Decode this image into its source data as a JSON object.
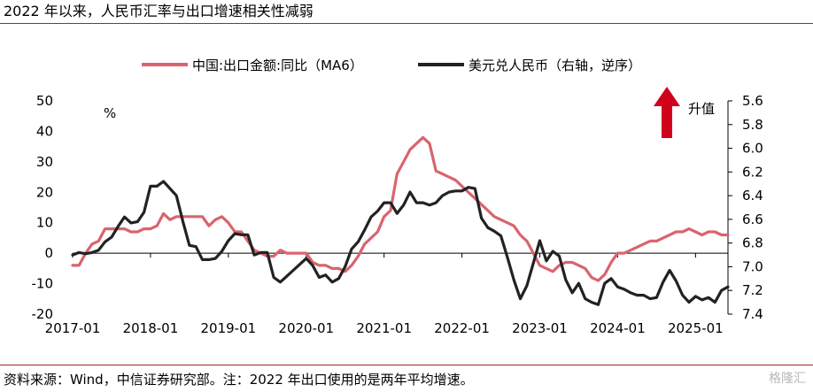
{
  "header": {
    "title": "2022 年以来，人民币汇率与出口增速相关性减弱"
  },
  "footer": {
    "source_note": "资料来源：Wind，中信证券研究部。注：2022 年出口使用的是两年平均增速。",
    "watermark": "格隆汇"
  },
  "colors": {
    "series_export": "#d9646e",
    "series_fx": "#222222",
    "arrow": "#d0021b",
    "rule": "#9a2a2a"
  },
  "chart_data": {
    "type": "line",
    "legend_position": "top",
    "grid": false,
    "x_axis": {
      "tick_labels": [
        "2017-01",
        "2018-01",
        "2019-01",
        "2020-01",
        "2021-01",
        "2022-01",
        "2023-01",
        "2024-01",
        "2025-01"
      ],
      "range": [
        "2017-01",
        "2025-06"
      ]
    },
    "y_left": {
      "unit_label": "%",
      "min": -20,
      "max": 50,
      "ticks": [
        -20,
        -10,
        0,
        10,
        20,
        30,
        40,
        50
      ]
    },
    "y_right": {
      "min": 5.6,
      "max": 7.4,
      "reversed": true,
      "ticks": [
        "5.6",
        "5.8",
        "6.0",
        "6.2",
        "6.4",
        "6.6",
        "6.8",
        "7.0",
        "7.2",
        "7.4"
      ]
    },
    "annotation": {
      "label": "升值",
      "direction": "up"
    },
    "series": [
      {
        "name": "中国:出口金额:同比（MA6）",
        "axis": "left",
        "points": [
          [
            "2017-01",
            -4
          ],
          [
            "2017-02",
            -4
          ],
          [
            "2017-03",
            0
          ],
          [
            "2017-04",
            3
          ],
          [
            "2017-05",
            4
          ],
          [
            "2017-06",
            8
          ],
          [
            "2017-07",
            8
          ],
          [
            "2017-08",
            8
          ],
          [
            "2017-09",
            8
          ],
          [
            "2017-10",
            7
          ],
          [
            "2017-11",
            7
          ],
          [
            "2017-12",
            8
          ],
          [
            "2018-01",
            8
          ],
          [
            "2018-02",
            9
          ],
          [
            "2018-03",
            13
          ],
          [
            "2018-04",
            11
          ],
          [
            "2018-05",
            12
          ],
          [
            "2018-06",
            12
          ],
          [
            "2018-07",
            12
          ],
          [
            "2018-08",
            12
          ],
          [
            "2018-09",
            12
          ],
          [
            "2018-10",
            9
          ],
          [
            "2018-11",
            11
          ],
          [
            "2018-12",
            12
          ],
          [
            "2019-01",
            10
          ],
          [
            "2019-02",
            7
          ],
          [
            "2019-03",
            7
          ],
          [
            "2019-04",
            4
          ],
          [
            "2019-05",
            1
          ],
          [
            "2019-06",
            0
          ],
          [
            "2019-07",
            -1
          ],
          [
            "2019-08",
            -1
          ],
          [
            "2019-09",
            1
          ],
          [
            "2019-10",
            0
          ],
          [
            "2019-11",
            0
          ],
          [
            "2019-12",
            0
          ],
          [
            "2020-01",
            0
          ],
          [
            "2020-02",
            -3
          ],
          [
            "2020-03",
            -4
          ],
          [
            "2020-04",
            -4
          ],
          [
            "2020-05",
            -5
          ],
          [
            "2020-06",
            -5
          ],
          [
            "2020-07",
            -6
          ],
          [
            "2020-08",
            -4
          ],
          [
            "2020-09",
            -1
          ],
          [
            "2020-10",
            3
          ],
          [
            "2020-11",
            5
          ],
          [
            "2020-12",
            7
          ],
          [
            "2021-01",
            12
          ],
          [
            "2021-02",
            14
          ],
          [
            "2021-03",
            26
          ],
          [
            "2021-04",
            30
          ],
          [
            "2021-05",
            34
          ],
          [
            "2021-06",
            36
          ],
          [
            "2021-07",
            38
          ],
          [
            "2021-08",
            36
          ],
          [
            "2021-09",
            27
          ],
          [
            "2021-10",
            26
          ],
          [
            "2021-11",
            25
          ],
          [
            "2021-12",
            24
          ],
          [
            "2022-01",
            22
          ],
          [
            "2022-02",
            20
          ],
          [
            "2022-03",
            18
          ],
          [
            "2022-04",
            16
          ],
          [
            "2022-05",
            14
          ],
          [
            "2022-06",
            12
          ],
          [
            "2022-07",
            11
          ],
          [
            "2022-08",
            10
          ],
          [
            "2022-09",
            9
          ],
          [
            "2022-10",
            6
          ],
          [
            "2022-11",
            4
          ],
          [
            "2022-12",
            0
          ],
          [
            "2023-01",
            -4
          ],
          [
            "2023-02",
            -5
          ],
          [
            "2023-03",
            -6
          ],
          [
            "2023-04",
            -4
          ],
          [
            "2023-05",
            -3
          ],
          [
            "2023-06",
            -3
          ],
          [
            "2023-07",
            -4
          ],
          [
            "2023-08",
            -5
          ],
          [
            "2023-09",
            -8
          ],
          [
            "2023-10",
            -9
          ],
          [
            "2023-11",
            -7
          ],
          [
            "2023-12",
            -3
          ],
          [
            "2024-01",
            0
          ],
          [
            "2024-02",
            0
          ],
          [
            "2024-03",
            1
          ],
          [
            "2024-04",
            2
          ],
          [
            "2024-05",
            3
          ],
          [
            "2024-06",
            4
          ],
          [
            "2024-07",
            4
          ],
          [
            "2024-08",
            5
          ],
          [
            "2024-09",
            6
          ],
          [
            "2024-10",
            7
          ],
          [
            "2024-11",
            7
          ],
          [
            "2024-12",
            8
          ],
          [
            "2025-01",
            7
          ],
          [
            "2025-02",
            6
          ],
          [
            "2025-03",
            7
          ],
          [
            "2025-04",
            7
          ],
          [
            "2025-05",
            6
          ],
          [
            "2025-06",
            6
          ]
        ]
      },
      {
        "name": "美元兑人民币（右轴，逆序）",
        "axis": "right",
        "points": [
          [
            "2017-01",
            6.9
          ],
          [
            "2017-02",
            6.88
          ],
          [
            "2017-03",
            6.89
          ],
          [
            "2017-04",
            6.88
          ],
          [
            "2017-05",
            6.86
          ],
          [
            "2017-06",
            6.79
          ],
          [
            "2017-07",
            6.75
          ],
          [
            "2017-08",
            6.66
          ],
          [
            "2017-09",
            6.58
          ],
          [
            "2017-10",
            6.63
          ],
          [
            "2017-11",
            6.62
          ],
          [
            "2017-12",
            6.54
          ],
          [
            "2018-01",
            6.32
          ],
          [
            "2018-02",
            6.32
          ],
          [
            "2018-03",
            6.28
          ],
          [
            "2018-04",
            6.34
          ],
          [
            "2018-05",
            6.4
          ],
          [
            "2018-06",
            6.62
          ],
          [
            "2018-07",
            6.82
          ],
          [
            "2018-08",
            6.83
          ],
          [
            "2018-09",
            6.94
          ],
          [
            "2018-10",
            6.94
          ],
          [
            "2018-11",
            6.93
          ],
          [
            "2018-12",
            6.87
          ],
          [
            "2019-01",
            6.78
          ],
          [
            "2019-02",
            6.72
          ],
          [
            "2019-03",
            6.73
          ],
          [
            "2019-04",
            6.73
          ],
          [
            "2019-05",
            6.9
          ],
          [
            "2019-06",
            6.88
          ],
          [
            "2019-07",
            6.88
          ],
          [
            "2019-08",
            7.09
          ],
          [
            "2019-09",
            7.13
          ],
          [
            "2019-10",
            7.08
          ],
          [
            "2019-11",
            7.03
          ],
          [
            "2019-12",
            6.98
          ],
          [
            "2020-01",
            6.93
          ],
          [
            "2020-02",
            6.99
          ],
          [
            "2020-03",
            7.09
          ],
          [
            "2020-04",
            7.07
          ],
          [
            "2020-05",
            7.13
          ],
          [
            "2020-06",
            7.1
          ],
          [
            "2020-07",
            7.0
          ],
          [
            "2020-08",
            6.85
          ],
          [
            "2020-09",
            6.79
          ],
          [
            "2020-10",
            6.69
          ],
          [
            "2020-11",
            6.58
          ],
          [
            "2020-12",
            6.53
          ],
          [
            "2021-01",
            6.46
          ],
          [
            "2021-02",
            6.46
          ],
          [
            "2021-03",
            6.55
          ],
          [
            "2021-04",
            6.48
          ],
          [
            "2021-05",
            6.37
          ],
          [
            "2021-06",
            6.46
          ],
          [
            "2021-07",
            6.46
          ],
          [
            "2021-08",
            6.48
          ],
          [
            "2021-09",
            6.46
          ],
          [
            "2021-10",
            6.4
          ],
          [
            "2021-11",
            6.37
          ],
          [
            "2021-12",
            6.36
          ],
          [
            "2022-01",
            6.36
          ],
          [
            "2022-02",
            6.33
          ],
          [
            "2022-03",
            6.34
          ],
          [
            "2022-04",
            6.59
          ],
          [
            "2022-05",
            6.67
          ],
          [
            "2022-06",
            6.7
          ],
          [
            "2022-07",
            6.74
          ],
          [
            "2022-08",
            6.92
          ],
          [
            "2022-09",
            7.11
          ],
          [
            "2022-10",
            7.27
          ],
          [
            "2022-11",
            7.16
          ],
          [
            "2022-12",
            6.97
          ],
          [
            "2023-01",
            6.78
          ],
          [
            "2023-02",
            6.95
          ],
          [
            "2023-03",
            6.87
          ],
          [
            "2023-04",
            6.91
          ],
          [
            "2023-05",
            7.11
          ],
          [
            "2023-06",
            7.22
          ],
          [
            "2023-07",
            7.14
          ],
          [
            "2023-08",
            7.27
          ],
          [
            "2023-09",
            7.3
          ],
          [
            "2023-10",
            7.32
          ],
          [
            "2023-11",
            7.14
          ],
          [
            "2023-12",
            7.1
          ],
          [
            "2024-01",
            7.17
          ],
          [
            "2024-02",
            7.19
          ],
          [
            "2024-03",
            7.22
          ],
          [
            "2024-04",
            7.24
          ],
          [
            "2024-05",
            7.24
          ],
          [
            "2024-06",
            7.27
          ],
          [
            "2024-07",
            7.26
          ],
          [
            "2024-08",
            7.13
          ],
          [
            "2024-09",
            7.03
          ],
          [
            "2024-10",
            7.12
          ],
          [
            "2024-11",
            7.24
          ],
          [
            "2024-12",
            7.3
          ],
          [
            "2025-01",
            7.25
          ],
          [
            "2025-02",
            7.28
          ],
          [
            "2025-03",
            7.26
          ],
          [
            "2025-04",
            7.3
          ],
          [
            "2025-05",
            7.2
          ],
          [
            "2025-06",
            7.17
          ]
        ]
      }
    ]
  }
}
